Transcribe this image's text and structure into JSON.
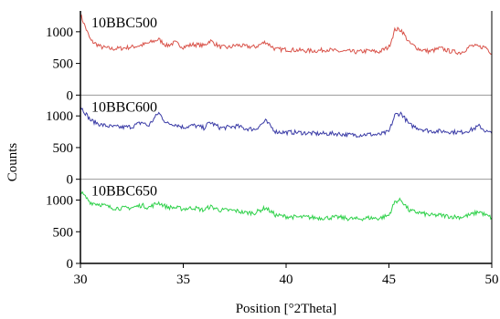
{
  "chart_data": {
    "type": "line",
    "xlabel": "Position [°2Theta]",
    "ylabel": "Counts",
    "xlim": [
      30,
      50
    ],
    "x_ticks": [
      30,
      35,
      40,
      45,
      50
    ],
    "grid": false,
    "panels": [
      {
        "name": "10BBC500",
        "color": "#d9534a",
        "ylim": [
          0,
          1300
        ],
        "y_ticks": [
          0,
          500,
          1000
        ],
        "series": {
          "x": [
            30.0,
            30.5,
            31.0,
            31.5,
            32.0,
            32.5,
            33.0,
            33.3,
            33.8,
            34.2,
            34.6,
            35.0,
            35.5,
            36.0,
            36.3,
            36.8,
            37.2,
            37.6,
            38.0,
            38.5,
            39.0,
            39.5,
            40.0,
            40.5,
            41.0,
            41.5,
            42.0,
            42.5,
            43.0,
            43.5,
            44.0,
            44.5,
            45.0,
            45.3,
            45.6,
            46.0,
            46.5,
            47.0,
            47.5,
            48.0,
            48.5,
            49.0,
            49.4,
            49.7,
            50.0
          ],
          "y": [
            1270,
            860,
            760,
            730,
            740,
            760,
            790,
            820,
            880,
            780,
            830,
            760,
            800,
            780,
            860,
            760,
            750,
            790,
            770,
            760,
            840,
            720,
            720,
            710,
            700,
            700,
            720,
            690,
            690,
            680,
            700,
            680,
            760,
            1040,
            1030,
            820,
            720,
            690,
            740,
            690,
            670,
            780,
            760,
            760,
            660
          ]
        }
      },
      {
        "name": "10BBC600",
        "color": "#3a3ba6",
        "ylim": [
          0,
          1300
        ],
        "y_ticks": [
          0,
          500,
          1000
        ],
        "series": {
          "x": [
            30.0,
            30.5,
            31.0,
            31.5,
            32.0,
            32.5,
            33.0,
            33.3,
            33.8,
            34.2,
            34.6,
            35.0,
            35.5,
            36.0,
            36.3,
            36.8,
            37.2,
            37.6,
            38.0,
            38.5,
            39.0,
            39.5,
            40.0,
            40.5,
            41.0,
            41.5,
            42.0,
            42.5,
            43.0,
            43.5,
            44.0,
            44.5,
            45.0,
            45.3,
            45.6,
            46.0,
            46.5,
            47.0,
            47.5,
            48.0,
            48.5,
            49.0,
            49.4,
            49.7,
            50.0
          ],
          "y": [
            1150,
            930,
            860,
            830,
            820,
            830,
            900,
            840,
            1050,
            880,
            870,
            820,
            850,
            810,
            900,
            810,
            820,
            840,
            800,
            790,
            920,
            750,
            740,
            740,
            730,
            720,
            720,
            720,
            700,
            700,
            710,
            700,
            750,
            1020,
            1040,
            860,
            800,
            760,
            760,
            750,
            740,
            780,
            840,
            760,
            720
          ]
        }
      },
      {
        "name": "10BBC650",
        "color": "#2fd14a",
        "ylim": [
          0,
          1300
        ],
        "y_ticks": [
          0,
          500,
          1000
        ],
        "series": {
          "x": [
            30.0,
            30.5,
            31.0,
            31.5,
            32.0,
            32.5,
            33.0,
            33.3,
            33.8,
            34.2,
            34.6,
            35.0,
            35.5,
            36.0,
            36.3,
            36.8,
            37.2,
            37.6,
            38.0,
            38.5,
            39.0,
            39.5,
            40.0,
            40.5,
            41.0,
            41.5,
            42.0,
            42.5,
            43.0,
            43.5,
            44.0,
            44.5,
            45.0,
            45.3,
            45.6,
            46.0,
            46.5,
            47.0,
            47.5,
            48.0,
            48.5,
            49.0,
            49.4,
            49.7,
            50.0
          ],
          "y": [
            1130,
            960,
            930,
            880,
            870,
            880,
            920,
            880,
            960,
            890,
            880,
            860,
            880,
            840,
            900,
            840,
            840,
            830,
            800,
            800,
            880,
            760,
            740,
            730,
            730,
            720,
            720,
            730,
            710,
            700,
            720,
            710,
            760,
            980,
            1000,
            830,
            800,
            760,
            760,
            740,
            730,
            770,
            820,
            760,
            720
          ]
        }
      }
    ]
  }
}
